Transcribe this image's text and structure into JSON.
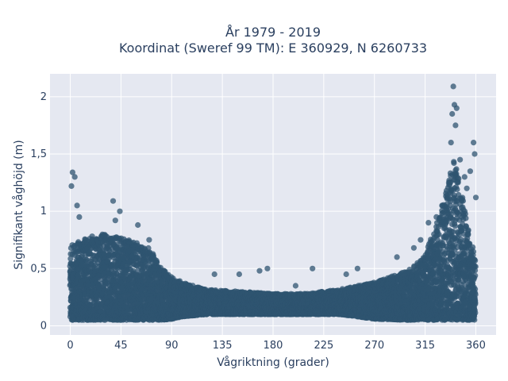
{
  "chart_data": {
    "type": "scatter",
    "title_line1": "År 1979 - 2019",
    "title_line2": "Koordinat (Sweref 99 TM): E 360929, N 6260733",
    "xlabel": "Vågriktning (grader)",
    "ylabel": "Signifikant våghöjd (m)",
    "xlim": [
      -18,
      378
    ],
    "ylim": [
      -0.08,
      2.2
    ],
    "x_ticks": [
      0,
      45,
      90,
      135,
      180,
      225,
      270,
      315,
      360
    ],
    "x_tick_labels": [
      "0",
      "45",
      "90",
      "135",
      "180",
      "225",
      "270",
      "315",
      "360"
    ],
    "y_ticks": [
      0,
      0.5,
      1,
      1.5,
      2
    ],
    "y_tick_labels": [
      "0",
      "0,5",
      "1",
      "1,5",
      "2"
    ],
    "grid": true,
    "marker_color": "#2f5470",
    "plot_background": "#e5e8f1",
    "envelope": {
      "x": [
        0,
        15,
        30,
        45,
        60,
        70,
        80,
        90,
        100,
        120,
        150,
        180,
        210,
        240,
        270,
        300,
        315,
        325,
        335,
        340,
        345,
        350,
        355,
        360
      ],
      "y_low": [
        0.05,
        0.05,
        0.05,
        0.05,
        0.05,
        0.05,
        0.05,
        0.06,
        0.08,
        0.1,
        0.1,
        0.1,
        0.1,
        0.1,
        0.06,
        0.05,
        0.05,
        0.05,
        0.05,
        0.05,
        0.05,
        0.05,
        0.05,
        0.05
      ],
      "y_high": [
        0.7,
        0.78,
        0.8,
        0.78,
        0.72,
        0.68,
        0.52,
        0.42,
        0.38,
        0.32,
        0.3,
        0.28,
        0.28,
        0.32,
        0.38,
        0.48,
        0.62,
        0.9,
        1.2,
        1.45,
        1.3,
        1.05,
        0.75,
        0.65
      ]
    },
    "outliers": [
      {
        "x": 1,
        "y": 1.22
      },
      {
        "x": 2,
        "y": 1.34
      },
      {
        "x": 4,
        "y": 1.3
      },
      {
        "x": 6,
        "y": 1.05
      },
      {
        "x": 8,
        "y": 0.95
      },
      {
        "x": 38,
        "y": 1.09
      },
      {
        "x": 40,
        "y": 0.92
      },
      {
        "x": 44,
        "y": 1.0
      },
      {
        "x": 60,
        "y": 0.88
      },
      {
        "x": 70,
        "y": 0.75
      },
      {
        "x": 128,
        "y": 0.45
      },
      {
        "x": 150,
        "y": 0.45
      },
      {
        "x": 168,
        "y": 0.48
      },
      {
        "x": 175,
        "y": 0.5
      },
      {
        "x": 200,
        "y": 0.35
      },
      {
        "x": 215,
        "y": 0.5
      },
      {
        "x": 245,
        "y": 0.45
      },
      {
        "x": 255,
        "y": 0.5
      },
      {
        "x": 290,
        "y": 0.6
      },
      {
        "x": 305,
        "y": 0.68
      },
      {
        "x": 311,
        "y": 0.75
      },
      {
        "x": 318,
        "y": 0.9
      },
      {
        "x": 325,
        "y": 0.95
      },
      {
        "x": 330,
        "y": 1.05
      },
      {
        "x": 334,
        "y": 1.18
      },
      {
        "x": 336,
        "y": 1.25
      },
      {
        "x": 338,
        "y": 1.6
      },
      {
        "x": 339,
        "y": 1.85
      },
      {
        "x": 340,
        "y": 2.09
      },
      {
        "x": 341,
        "y": 1.93
      },
      {
        "x": 342,
        "y": 1.75
      },
      {
        "x": 343,
        "y": 1.9
      },
      {
        "x": 346,
        "y": 1.45
      },
      {
        "x": 350,
        "y": 1.3
      },
      {
        "x": 352,
        "y": 1.2
      },
      {
        "x": 355,
        "y": 1.35
      },
      {
        "x": 358,
        "y": 1.6
      },
      {
        "x": 359,
        "y": 1.5
      },
      {
        "x": 360,
        "y": 1.12
      }
    ]
  }
}
